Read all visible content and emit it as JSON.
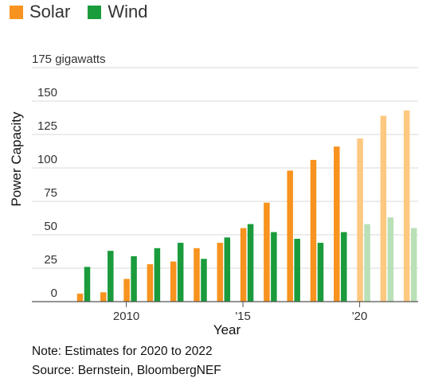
{
  "chart_data": {
    "type": "bar",
    "title": "",
    "xlabel": "Year",
    "ylabel": "Power Capacity",
    "y_unit_label": "175 gigawatts",
    "ylim": [
      0,
      175
    ],
    "y_ticks": [
      0,
      25,
      50,
      75,
      100,
      125,
      150
    ],
    "x_tick_labels": [
      {
        "category": "2010",
        "label": "2010"
      },
      {
        "category": "2015",
        "label": "'15"
      },
      {
        "category": "2020",
        "label": "'20"
      }
    ],
    "categories": [
      "2008",
      "2009",
      "2010",
      "2011",
      "2012",
      "2013",
      "2014",
      "2015",
      "2016",
      "2017",
      "2018",
      "2019",
      "2020",
      "2021",
      "2022"
    ],
    "estimated_categories": [
      "2020",
      "2021",
      "2022"
    ],
    "grid": true,
    "legend_position": "top-left",
    "series": [
      {
        "name": "Solar",
        "color": "#f7931e",
        "estimate_color": "#fdc87f",
        "values": [
          6,
          7,
          17,
          28,
          30,
          40,
          44,
          55,
          74,
          98,
          106,
          116,
          122,
          139,
          143
        ]
      },
      {
        "name": "Wind",
        "color": "#1a9b3c",
        "estimate_color": "#b9e0b6",
        "values": [
          26,
          38,
          34,
          40,
          44,
          32,
          48,
          58,
          52,
          47,
          44,
          52,
          58,
          63,
          55
        ]
      }
    ]
  },
  "notes": {
    "line1": "Note: Estimates for 2020 to 2022",
    "line2": "Source: Bernstein, BloombergNEF"
  }
}
